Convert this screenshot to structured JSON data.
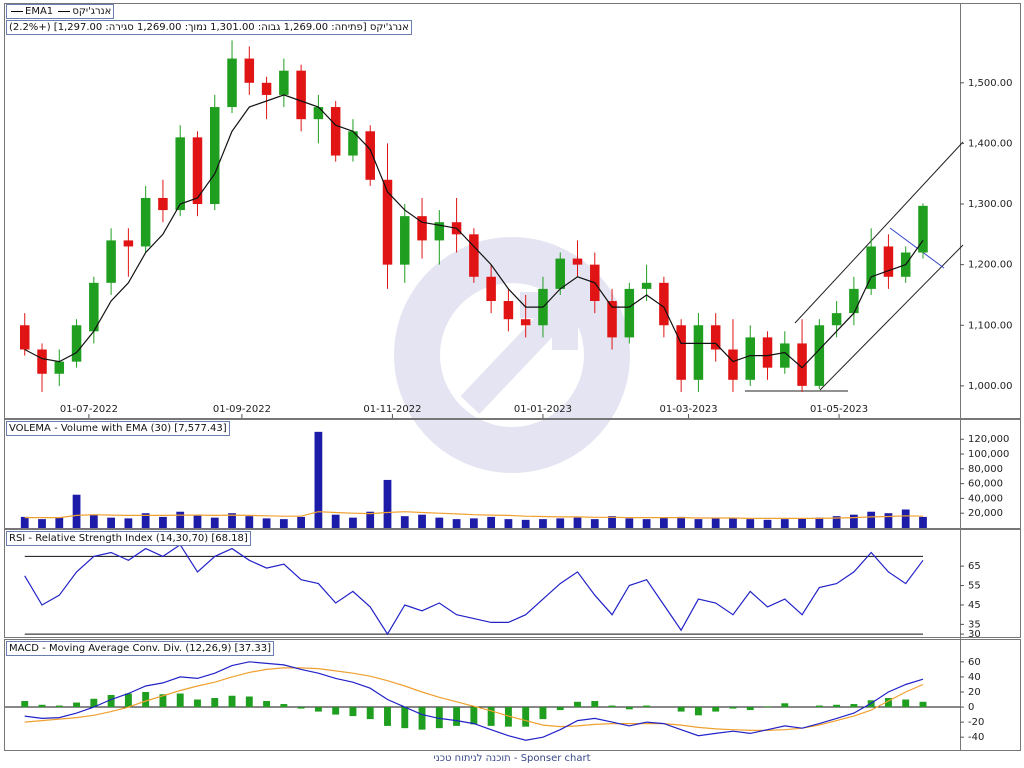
{
  "chart_data": [
    {
      "type": "candlestick",
      "title": "אנרג'יקס [פתיחה: 1,269.00  גבוה: 1,301.00  נמוך: 1,269.00  סגירה: 1,297.00] (+2.2%)",
      "x": [
        "05-06-2022",
        "12-06-2022",
        "19-06-2022",
        "26-06-2022",
        "03-07-2022",
        "10-07-2022",
        "17-07-2022",
        "24-07-2022",
        "31-07-2022",
        "07-08-2022",
        "14-08-2022",
        "21-08-2022",
        "28-08-2022",
        "04-09-2022",
        "11-09-2022",
        "18-09-2022",
        "25-09-2022",
        "02-10-2022",
        "09-10-2022",
        "16-10-2022",
        "23-10-2022",
        "30-10-2022",
        "06-11-2022",
        "13-11-2022",
        "20-11-2022",
        "27-11-2022",
        "04-12-2022",
        "11-12-2022",
        "18-12-2022",
        "25-12-2022",
        "01-01-2023",
        "08-01-2023",
        "15-01-2023",
        "22-01-2023",
        "29-01-2023",
        "05-02-2023",
        "12-02-2023",
        "19-02-2023",
        "26-02-2023",
        "05-03-2023",
        "12-03-2023",
        "19-03-2023",
        "26-03-2023",
        "02-04-2023",
        "09-04-2023",
        "16-04-2023",
        "23-04-2023",
        "30-04-2023",
        "07-05-2023",
        "14-05-2023",
        "21-05-2023",
        "28-05-2023",
        "04-06-2023"
      ],
      "series": [
        {
          "name": "אנרג'יקס",
          "up_color": "#1f9e1f",
          "down_color": "#e01414",
          "open": [
            1100,
            1060,
            1020,
            1040,
            1090,
            1170,
            1240,
            1230,
            1310,
            1290,
            1410,
            1300,
            1460,
            1540,
            1500,
            1480,
            1520,
            1440,
            1460,
            1380,
            1420,
            1340,
            1200,
            1280,
            1240,
            1270,
            1250,
            1180,
            1140,
            1110,
            1100,
            1160,
            1210,
            1200,
            1140,
            1080,
            1160,
            1170,
            1100,
            1010,
            1100,
            1060,
            1010,
            1080,
            1030,
            1070,
            1000,
            1100,
            1120,
            1160,
            1230,
            1180,
            1220
          ],
          "high": [
            1120,
            1070,
            1060,
            1110,
            1180,
            1260,
            1260,
            1330,
            1340,
            1430,
            1420,
            1480,
            1570,
            1560,
            1510,
            1540,
            1530,
            1480,
            1470,
            1440,
            1430,
            1400,
            1300,
            1310,
            1290,
            1310,
            1260,
            1200,
            1160,
            1150,
            1180,
            1220,
            1240,
            1220,
            1160,
            1170,
            1200,
            1180,
            1110,
            1120,
            1120,
            1110,
            1100,
            1090,
            1090,
            1110,
            1110,
            1140,
            1180,
            1260,
            1250,
            1230,
            1301
          ],
          "low": [
            1050,
            990,
            1000,
            1030,
            1070,
            1150,
            1180,
            1220,
            1270,
            1280,
            1280,
            1290,
            1450,
            1480,
            1440,
            1460,
            1420,
            1400,
            1370,
            1370,
            1330,
            1160,
            1170,
            1210,
            1200,
            1220,
            1170,
            1120,
            1090,
            1080,
            1080,
            1150,
            1180,
            1120,
            1060,
            1070,
            1140,
            1080,
            990,
            990,
            1040,
            990,
            1000,
            1010,
            1020,
            990,
            995,
            1080,
            1100,
            1150,
            1160,
            1170,
            1210
          ],
          "close": [
            1060,
            1020,
            1040,
            1100,
            1170,
            1240,
            1230,
            1310,
            1290,
            1410,
            1300,
            1460,
            1540,
            1500,
            1480,
            1520,
            1440,
            1460,
            1380,
            1420,
            1340,
            1200,
            1280,
            1240,
            1270,
            1250,
            1180,
            1140,
            1110,
            1100,
            1160,
            1210,
            1200,
            1140,
            1080,
            1160,
            1170,
            1100,
            1010,
            1100,
            1060,
            1010,
            1080,
            1030,
            1070,
            1000,
            1100,
            1120,
            1160,
            1230,
            1180,
            1220,
            1297
          ]
        },
        {
          "name": "EMA1",
          "color": "#111111",
          "values": [
            1060,
            1045,
            1040,
            1055,
            1090,
            1140,
            1170,
            1220,
            1250,
            1300,
            1310,
            1350,
            1420,
            1460,
            1470,
            1480,
            1470,
            1460,
            1430,
            1420,
            1390,
            1320,
            1290,
            1270,
            1265,
            1260,
            1230,
            1200,
            1160,
            1130,
            1130,
            1160,
            1180,
            1170,
            1130,
            1130,
            1150,
            1130,
            1070,
            1070,
            1070,
            1040,
            1050,
            1050,
            1055,
            1030,
            1060,
            1090,
            1120,
            1180,
            1190,
            1200,
            1240
          ]
        }
      ],
      "xlim": [
        "28-05-2022",
        "19-06-2023"
      ],
      "xticks": [
        "01-07-2022",
        "01-09-2022",
        "01-11-2022",
        "01-01-2023",
        "01-03-2023",
        "01-05-2023"
      ],
      "ylim": [
        947,
        1630
      ],
      "yticks": [
        {
          "value": 1000,
          "label": "1,000.00"
        },
        {
          "value": 1100,
          "label": "1,100.00"
        },
        {
          "value": 1200,
          "label": "1,200.00"
        },
        {
          "value": 1300,
          "label": "1,300.00"
        },
        {
          "value": 1400,
          "label": "1,400.00"
        },
        {
          "value": 1500,
          "label": "1,500.00"
        }
      ]
    },
    {
      "type": "bar",
      "title": "VOLEMA - Volume with EMA (30) [7,577.43]",
      "color": "#1c1ca8",
      "values": [
        15000,
        12000,
        14000,
        45000,
        18000,
        14000,
        13000,
        20000,
        15000,
        22000,
        18000,
        14000,
        20000,
        16000,
        13000,
        12000,
        15000,
        130000,
        18000,
        14000,
        22000,
        65000,
        16000,
        18000,
        14000,
        12000,
        13000,
        15000,
        12000,
        11000,
        12000,
        13000,
        14000,
        12000,
        16000,
        13000,
        12000,
        14000,
        15000,
        12000,
        14000,
        13000,
        12000,
        11000,
        12000,
        13000,
        14000,
        16000,
        18000,
        22000,
        20000,
        25000,
        15000
      ],
      "ema": {
        "color": "#f0a030",
        "values": [
          14000,
          14000,
          14000,
          17000,
          18000,
          17500,
          17000,
          17000,
          17000,
          17500,
          17500,
          17000,
          17500,
          17000,
          16500,
          16000,
          16000,
          22000,
          21000,
          20000,
          19500,
          21000,
          22000,
          21000,
          20000,
          19000,
          18000,
          17500,
          17000,
          16000,
          15500,
          15000,
          15000,
          14500,
          14500,
          14000,
          14000,
          14000,
          14000,
          13500,
          13500,
          13500,
          13000,
          13000,
          13000,
          13000,
          13000,
          13500,
          14000,
          15000,
          15500,
          16500,
          16000
        ]
      },
      "ylim": [
        0,
        146000
      ],
      "yticks": [
        {
          "value": 20000,
          "label": "20,000"
        },
        {
          "value": 40000,
          "label": "40,000"
        },
        {
          "value": 60000,
          "label": "60,000"
        },
        {
          "value": 80000,
          "label": "80,000"
        },
        {
          "value": 100000,
          "label": "100,000"
        },
        {
          "value": 120000,
          "label": "120,000"
        }
      ]
    },
    {
      "type": "line",
      "title": "RSI - Relative Strength Index (14,30,70) [68.18]",
      "color": "#2222c8",
      "values": [
        60,
        45,
        50,
        62,
        70,
        72,
        68,
        74,
        70,
        76,
        62,
        70,
        74,
        68,
        64,
        66,
        58,
        56,
        46,
        52,
        44,
        30,
        45,
        42,
        46,
        40,
        38,
        36,
        36,
        40,
        48,
        56,
        62,
        50,
        40,
        55,
        58,
        45,
        32,
        48,
        46,
        40,
        52,
        44,
        48,
        40,
        54,
        56,
        62,
        72,
        62,
        56,
        68
      ],
      "hlines": [
        30,
        70
      ],
      "ylim": [
        28.5,
        83.6
      ],
      "yticks": [
        30,
        35,
        45,
        55,
        65
      ]
    },
    {
      "type": "macd",
      "title": "MACD - Moving Average Conv. Div. (12,26,9) [37.33]",
      "macd": {
        "color": "#2222c8",
        "values": [
          -12,
          -15,
          -14,
          -8,
          0,
          10,
          18,
          28,
          32,
          40,
          38,
          45,
          55,
          60,
          58,
          56,
          50,
          45,
          38,
          33,
          25,
          10,
          0,
          -10,
          -15,
          -18,
          -22,
          -30,
          -38,
          -44,
          -40,
          -30,
          -18,
          -15,
          -20,
          -25,
          -20,
          -22,
          -30,
          -38,
          -35,
          -32,
          -35,
          -30,
          -25,
          -28,
          -22,
          -15,
          -8,
          5,
          20,
          30,
          37
        ]
      },
      "signal": {
        "color": "#f0a030",
        "values": [
          -20,
          -18,
          -16,
          -14,
          -11,
          -6,
          0,
          8,
          15,
          22,
          28,
          33,
          40,
          46,
          50,
          52,
          52,
          51,
          48,
          45,
          41,
          35,
          28,
          20,
          13,
          7,
          1,
          -5,
          -12,
          -18,
          -24,
          -26,
          -25,
          -23,
          -22,
          -22,
          -22,
          -22,
          -24,
          -27,
          -29,
          -30,
          -31,
          -31,
          -30,
          -28,
          -24,
          -18,
          -12,
          -4,
          8,
          20,
          30
        ]
      },
      "histogram": {
        "color": "#1f9e1f",
        "values": [
          8,
          3,
          2,
          6,
          11,
          16,
          18,
          20,
          17,
          18,
          10,
          12,
          15,
          14,
          8,
          4,
          -2,
          -6,
          -10,
          -12,
          -16,
          -25,
          -28,
          -30,
          -28,
          -25,
          -23,
          -25,
          -26,
          -26,
          -16,
          -4,
          7,
          8,
          2,
          -3,
          2,
          0,
          -6,
          -11,
          -6,
          -2,
          -4,
          1,
          5,
          0,
          2,
          3,
          4,
          9,
          12,
          10,
          7
        ]
      },
      "ylim": [
        -57,
        89
      ],
      "yticks": [
        -40,
        -20,
        0,
        20,
        40,
        60
      ]
    }
  ],
  "footer": "Sponser chart - תוכנה לניתוח טכני"
}
